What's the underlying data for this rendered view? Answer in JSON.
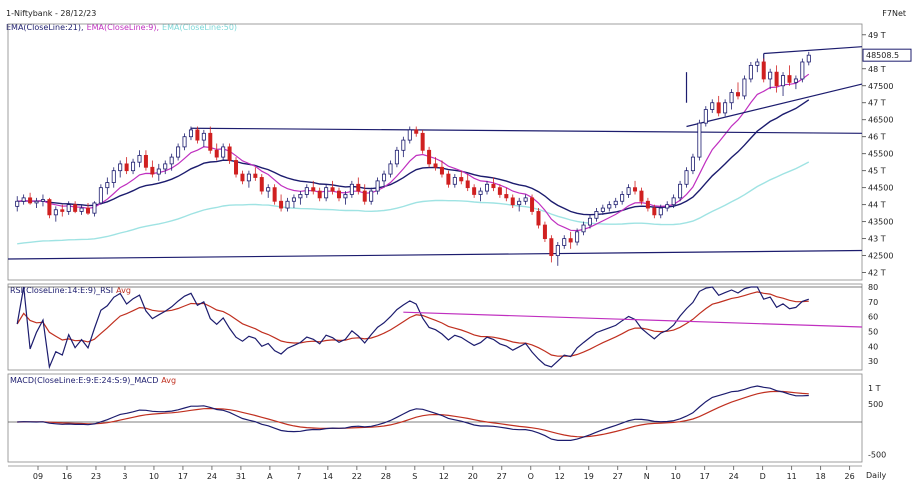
{
  "header": {
    "title": "1-Niftybank - 28/12/23",
    "brand": "F7Net",
    "ema_legend": [
      {
        "text": "EMA(CloseLine:21),",
        "color": "#1c1c6e"
      },
      {
        "text": "EMA(CloseLine:9),",
        "color": "#c030c0"
      },
      {
        "text": "EMA(CloseLine:50)",
        "color": "#7fd8d8"
      }
    ]
  },
  "rsi_panel": {
    "legend": [
      {
        "text": "RSI(CloseLine:14:E:9)_RSI",
        "color": "#1c1c6e"
      },
      {
        "text": "Avg",
        "color": "#c03020"
      }
    ],
    "yticks": [
      "80",
      "70",
      "60",
      "50",
      "40",
      "30"
    ]
  },
  "macd_panel": {
    "legend": [
      {
        "text": "MACD(CloseLine:E:9:E:24:S:9)_MACD",
        "color": "#1c1c6e"
      },
      {
        "text": "Avg",
        "color": "#c03020"
      }
    ],
    "yticks": [
      "1 T",
      "500",
      "-500"
    ]
  },
  "price_badge": "48508.5",
  "footer": {
    "period": "Daily"
  },
  "chart_data": {
    "type": "candlestick",
    "y_axis_ticks": [
      "49 T",
      "48 T",
      "47500",
      "47 T",
      "46500",
      "46 T",
      "45500",
      "45 T",
      "44500",
      "44 T",
      "43500",
      "43 T",
      "42500",
      "42 T"
    ],
    "x_axis_ticks": [
      "09",
      "16",
      "23",
      "3",
      "10",
      "17",
      "24",
      "31",
      "A",
      "7",
      "14",
      "22",
      "28",
      "S",
      "12",
      "20",
      "27",
      "O",
      "12",
      "19",
      "27",
      "N",
      "10",
      "17",
      "24",
      "D",
      "11",
      "18",
      "26"
    ],
    "price_range": [
      41900,
      49200
    ],
    "candles": [
      [
        43950,
        44250,
        43800,
        44100
      ],
      [
        44100,
        44300,
        44000,
        44200
      ],
      [
        44200,
        44350,
        44000,
        44050
      ],
      [
        44050,
        44200,
        43900,
        44100
      ],
      [
        44100,
        44300,
        43950,
        44150
      ],
      [
        44150,
        44200,
        43600,
        43700
      ],
      [
        43700,
        43950,
        43500,
        43850
      ],
      [
        43850,
        44000,
        43650,
        43800
      ],
      [
        43800,
        44100,
        43700,
        44000
      ],
      [
        44000,
        44100,
        43750,
        43800
      ],
      [
        43800,
        44000,
        43700,
        43900
      ],
      [
        43900,
        44050,
        43700,
        43750
      ],
      [
        43750,
        44100,
        43650,
        44050
      ],
      [
        44050,
        44600,
        44000,
        44500
      ],
      [
        44500,
        44800,
        44300,
        44650
      ],
      [
        44650,
        45100,
        44500,
        45000
      ],
      [
        45000,
        45300,
        44800,
        45200
      ],
      [
        45200,
        45400,
        44900,
        45000
      ],
      [
        45000,
        45350,
        44900,
        45250
      ],
      [
        45250,
        45600,
        45100,
        45450
      ],
      [
        45450,
        45600,
        45000,
        45100
      ],
      [
        45100,
        45300,
        44800,
        44900
      ],
      [
        44900,
        45200,
        44700,
        45050
      ],
      [
        45050,
        45300,
        44900,
        45200
      ],
      [
        45200,
        45500,
        45000,
        45400
      ],
      [
        45400,
        45800,
        45300,
        45700
      ],
      [
        45700,
        46100,
        45600,
        46000
      ],
      [
        46000,
        46300,
        45900,
        46200
      ],
      [
        46200,
        46300,
        45800,
        45900
      ],
      [
        45900,
        46200,
        45700,
        46100
      ],
      [
        46100,
        46300,
        45500,
        45600
      ],
      [
        45600,
        45800,
        45300,
        45400
      ],
      [
        45400,
        45800,
        45300,
        45700
      ],
      [
        45700,
        45800,
        45200,
        45300
      ],
      [
        45300,
        45400,
        44800,
        44900
      ],
      [
        44900,
        45000,
        44600,
        44700
      ],
      [
        44700,
        45000,
        44500,
        44900
      ],
      [
        44900,
        45100,
        44700,
        44800
      ],
      [
        44800,
        44900,
        44300,
        44400
      ],
      [
        44400,
        44600,
        44200,
        44500
      ],
      [
        44500,
        44600,
        44000,
        44100
      ],
      [
        44100,
        44300,
        43800,
        43900
      ],
      [
        43900,
        44200,
        43800,
        44100
      ],
      [
        44100,
        44300,
        43900,
        44200
      ],
      [
        44200,
        44400,
        44000,
        44300
      ],
      [
        44300,
        44600,
        44200,
        44500
      ],
      [
        44500,
        44700,
        44300,
        44400
      ],
      [
        44400,
        44500,
        44100,
        44200
      ],
      [
        44200,
        44600,
        44100,
        44500
      ],
      [
        44500,
        44700,
        44300,
        44400
      ],
      [
        44400,
        44500,
        44100,
        44200
      ],
      [
        44200,
        44400,
        44000,
        44300
      ],
      [
        44300,
        44700,
        44200,
        44600
      ],
      [
        44600,
        44800,
        44300,
        44400
      ],
      [
        44400,
        44600,
        44000,
        44100
      ],
      [
        44100,
        44500,
        44000,
        44400
      ],
      [
        44400,
        44800,
        44300,
        44700
      ],
      [
        44700,
        45000,
        44500,
        44900
      ],
      [
        44900,
        45300,
        44800,
        45200
      ],
      [
        45200,
        45700,
        45100,
        45600
      ],
      [
        45600,
        46000,
        45400,
        45900
      ],
      [
        45900,
        46300,
        45800,
        46200
      ],
      [
        46200,
        46300,
        46000,
        46100
      ],
      [
        46100,
        46200,
        45500,
        45600
      ],
      [
        45600,
        45700,
        45100,
        45200
      ],
      [
        45200,
        45400,
        45000,
        45100
      ],
      [
        45100,
        45300,
        44800,
        44900
      ],
      [
        44900,
        45000,
        44500,
        44600
      ],
      [
        44600,
        44900,
        44500,
        44800
      ],
      [
        44800,
        45000,
        44600,
        44700
      ],
      [
        44700,
        44900,
        44400,
        44500
      ],
      [
        44500,
        44600,
        44200,
        44300
      ],
      [
        44300,
        44500,
        44100,
        44400
      ],
      [
        44400,
        44700,
        44300,
        44600
      ],
      [
        44600,
        44800,
        44400,
        44500
      ],
      [
        44500,
        44600,
        44200,
        44300
      ],
      [
        44300,
        44500,
        44100,
        44200
      ],
      [
        44200,
        44300,
        43900,
        44000
      ],
      [
        44000,
        44200,
        43800,
        44100
      ],
      [
        44100,
        44300,
        44000,
        44200
      ],
      [
        44200,
        44300,
        43700,
        43800
      ],
      [
        43800,
        43900,
        43300,
        43400
      ],
      [
        43400,
        43500,
        42900,
        43000
      ],
      [
        43000,
        43100,
        42300,
        42500
      ],
      [
        42500,
        42900,
        42200,
        42800
      ],
      [
        42800,
        43100,
        42700,
        43000
      ],
      [
        43000,
        43200,
        42700,
        42900
      ],
      [
        42900,
        43300,
        42800,
        43200
      ],
      [
        43200,
        43500,
        43100,
        43400
      ],
      [
        43400,
        43700,
        43300,
        43600
      ],
      [
        43600,
        43900,
        43500,
        43800
      ],
      [
        43800,
        44000,
        43700,
        43900
      ],
      [
        43900,
        44100,
        43800,
        44000
      ],
      [
        44000,
        44200,
        43900,
        44100
      ],
      [
        44100,
        44400,
        44000,
        44300
      ],
      [
        44300,
        44600,
        44200,
        44500
      ],
      [
        44500,
        44700,
        44300,
        44400
      ],
      [
        44400,
        44500,
        44000,
        44100
      ],
      [
        44100,
        44200,
        43800,
        43900
      ],
      [
        43900,
        44000,
        43600,
        43700
      ],
      [
        43700,
        44000,
        43600,
        43900
      ],
      [
        43900,
        44100,
        43800,
        44000
      ],
      [
        44000,
        44300,
        43900,
        44200
      ],
      [
        44200,
        44700,
        44100,
        44600
      ],
      [
        44600,
        45100,
        44500,
        45000
      ],
      [
        45000,
        45500,
        44900,
        45400
      ],
      [
        45400,
        46500,
        45300,
        46400
      ],
      [
        46400,
        46900,
        46300,
        46800
      ],
      [
        46800,
        47100,
        46700,
        47000
      ],
      [
        47000,
        47200,
        46600,
        46700
      ],
      [
        46700,
        47100,
        46600,
        47000
      ],
      [
        47000,
        47400,
        46800,
        47300
      ],
      [
        47300,
        47600,
        47100,
        47200
      ],
      [
        47200,
        47800,
        47100,
        47700
      ],
      [
        47700,
        48200,
        47600,
        48100
      ],
      [
        48100,
        48300,
        47900,
        48200
      ],
      [
        48200,
        48300,
        47600,
        47700
      ],
      [
        47700,
        48000,
        47400,
        47900
      ],
      [
        47900,
        48100,
        47300,
        47500
      ],
      [
        47500,
        47900,
        47200,
        47800
      ],
      [
        47800,
        48100,
        47500,
        47600
      ],
      [
        47600,
        47800,
        47400,
        47700
      ],
      [
        47700,
        48300,
        47600,
        48200
      ],
      [
        48200,
        48500,
        48100,
        48400
      ]
    ]
  }
}
